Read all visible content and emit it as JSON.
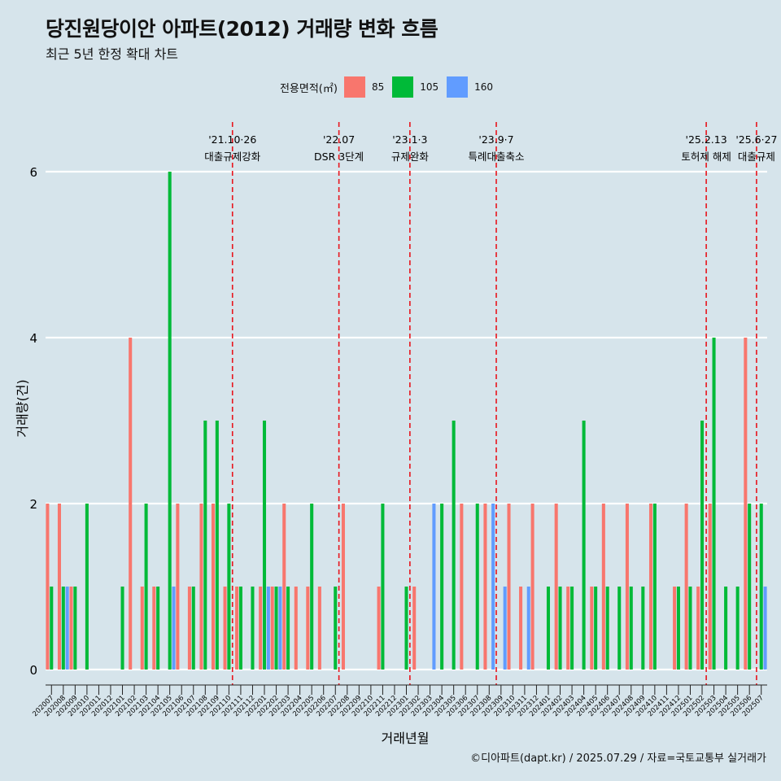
{
  "chart_data": {
    "type": "bar",
    "title": "당진원당이안 아파트(2012) 거래량 변화 흐름",
    "subtitle": "최근 5년 한정 확대 차트",
    "xlabel": "거래년월",
    "ylabel": "거래량(건)",
    "ylim": [
      -0.2,
      6.3
    ],
    "yticks": [
      0,
      2,
      4,
      6
    ],
    "legend_title": "전용면적(㎡)",
    "legend_position": "top",
    "grid": "horizontal",
    "caption": "©디아파트(dapt.kr) / 2025.07.29 / 자료=국토교통부 실거래가",
    "months": [
      "202007",
      "202008",
      "202009",
      "202010",
      "202011",
      "202012",
      "202101",
      "202102",
      "202103",
      "202104",
      "202105",
      "202106",
      "202107",
      "202108",
      "202109",
      "202110",
      "202111",
      "202112",
      "202201",
      "202202",
      "202203",
      "202204",
      "202205",
      "202206",
      "202207",
      "202208",
      "202209",
      "202210",
      "202211",
      "202212",
      "202301",
      "202302",
      "202303",
      "202304",
      "202305",
      "202306",
      "202307",
      "202308",
      "202309",
      "202310",
      "202311",
      "202312",
      "202401",
      "202402",
      "202403",
      "202404",
      "202405",
      "202406",
      "202407",
      "202408",
      "202409",
      "202410",
      "202411",
      "202412",
      "202501",
      "202502",
      "202503",
      "202504",
      "202505",
      "202506",
      "202507"
    ],
    "series": [
      {
        "name": "85",
        "color": "#f8766d",
        "values": [
          2,
          2,
          1,
          0,
          0,
          0,
          0,
          4,
          1,
          1,
          0,
          2,
          1,
          2,
          2,
          1,
          1,
          0,
          1,
          1,
          2,
          1,
          1,
          1,
          0,
          2,
          0,
          0,
          1,
          0,
          0,
          1,
          0,
          0,
          0,
          2,
          0,
          2,
          0,
          2,
          1,
          2,
          0,
          2,
          1,
          0,
          1,
          2,
          0,
          2,
          0,
          2,
          0,
          1,
          2,
          1,
          2,
          0,
          0,
          4,
          0
        ]
      },
      {
        "name": "105",
        "color": "#00ba38",
        "values": [
          1,
          1,
          1,
          2,
          0,
          0,
          1,
          0,
          2,
          1,
          6,
          0,
          1,
          3,
          3,
          2,
          1,
          1,
          3,
          1,
          1,
          0,
          2,
          0,
          1,
          0,
          0,
          0,
          2,
          0,
          1,
          0,
          0,
          2,
          3,
          0,
          2,
          0,
          0,
          0,
          0,
          0,
          1,
          1,
          1,
          3,
          1,
          1,
          1,
          1,
          1,
          2,
          0,
          1,
          1,
          3,
          4,
          1,
          1,
          2,
          2
        ]
      },
      {
        "name": "160",
        "color": "#619cff",
        "values": [
          0,
          1,
          0,
          0,
          0,
          0,
          0,
          0,
          0,
          0,
          1,
          0,
          0,
          0,
          0,
          0,
          0,
          0,
          1,
          1,
          0,
          0,
          0,
          0,
          0,
          0,
          0,
          0,
          0,
          0,
          0,
          0,
          2,
          0,
          0,
          0,
          0,
          2,
          1,
          0,
          1,
          0,
          0,
          0,
          0,
          0,
          0,
          0,
          0,
          0,
          0,
          0,
          0,
          0,
          0,
          0,
          0,
          0,
          0,
          0,
          1
        ]
      }
    ],
    "events": [
      {
        "month": "202110",
        "date": "'21.10·26",
        "label": "대출규제강화"
      },
      {
        "month": "202207",
        "date": "'22.07",
        "label": "DSR 3단계"
      },
      {
        "month": "202301",
        "date": "'23.1·3",
        "label": "규제완화"
      },
      {
        "month": "202309",
        "date": "'23.9·7",
        "label": "특례대출축소"
      },
      {
        "month": "202502",
        "date": "'25.2.13",
        "label": "토허제 해제"
      },
      {
        "month": "202506",
        "date": "'25.6·27",
        "label": "대출규제"
      }
    ]
  }
}
